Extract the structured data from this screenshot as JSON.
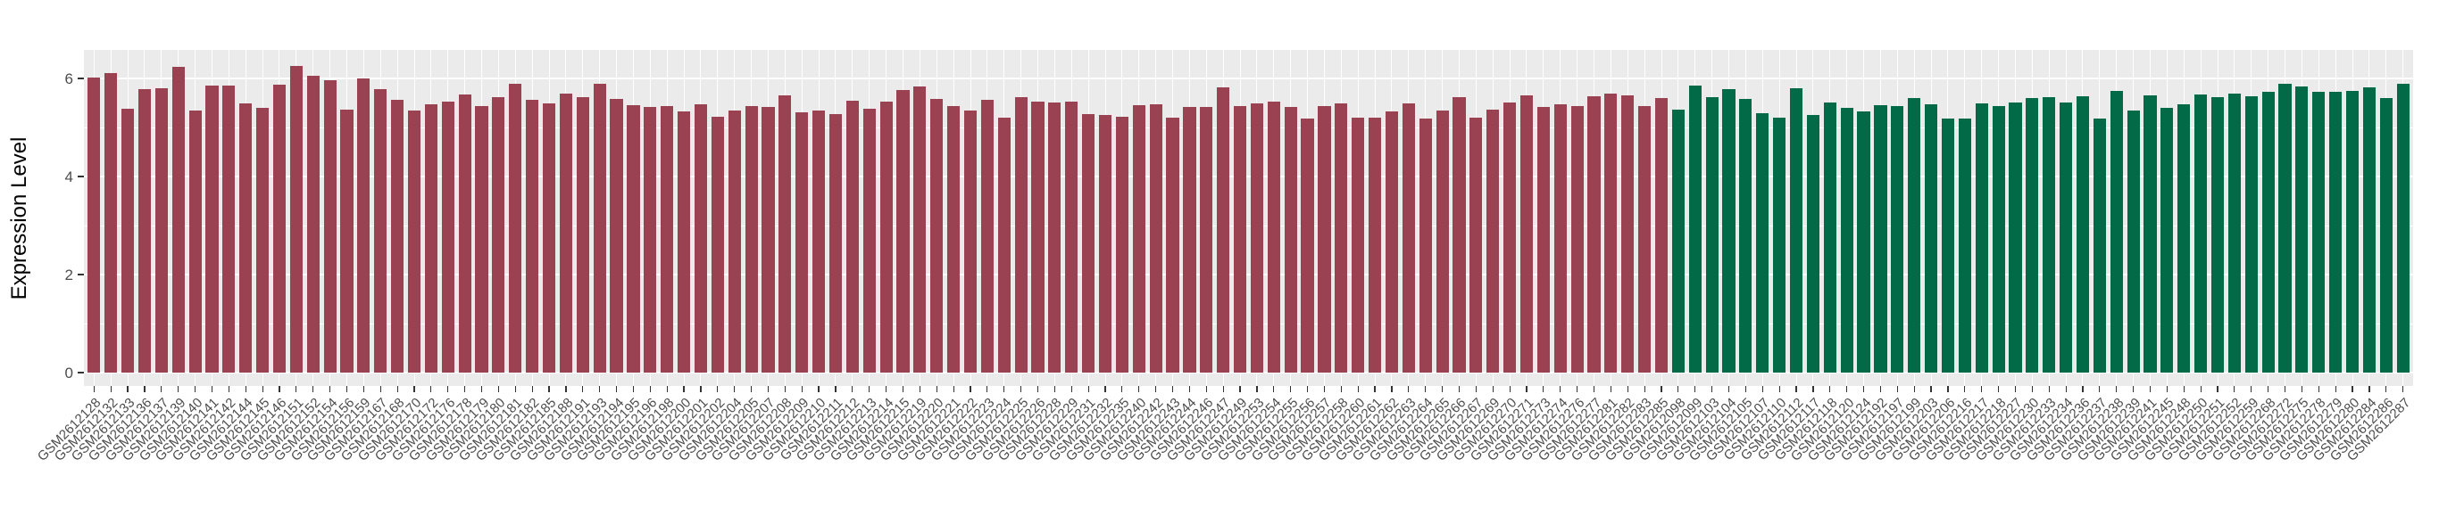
{
  "chart_data": {
    "type": "bar",
    "title": "",
    "xlabel": "",
    "ylabel": "Expression Level",
    "ylim": [
      0,
      6.58
    ],
    "yticks": [
      0,
      2,
      4,
      6
    ],
    "grid": "white major and minor horizontal lines, white vertical line at each category, on gray panel",
    "legend": "none",
    "style": {
      "panel_bg": "#EBEBEB",
      "grid_color": "#FFFFFF",
      "tick_mark_color": "#333333",
      "tick_label_color": "#4D4D4D",
      "axis_title_color": "#000000",
      "page_bg": "#FFFFFF"
    },
    "groups": [
      {
        "name": "group-red",
        "color": "#9A4152",
        "count": 94
      },
      {
        "name": "group-green",
        "color": "#036A48",
        "count": 44
      }
    ],
    "categories": [
      "GSM2612128",
      "GSM2612132",
      "GSM2612133",
      "GSM2612136",
      "GSM2612137",
      "GSM2612139",
      "GSM2612140",
      "GSM2612141",
      "GSM2612142",
      "GSM2612144",
      "GSM2612145",
      "GSM2612146",
      "GSM2612151",
      "GSM2612152",
      "GSM2612154",
      "GSM2612156",
      "GSM2612159",
      "GSM2612167",
      "GSM2612168",
      "GSM2612170",
      "GSM2612172",
      "GSM2612176",
      "GSM2612178",
      "GSM2612179",
      "GSM2612180",
      "GSM2612181",
      "GSM2612182",
      "GSM2612185",
      "GSM2612188",
      "GSM2612191",
      "GSM2612193",
      "GSM2612194",
      "GSM2612195",
      "GSM2612196",
      "GSM2612198",
      "GSM2612200",
      "GSM2612201",
      "GSM2612202",
      "GSM2612204",
      "GSM2612205",
      "GSM2612207",
      "GSM2612208",
      "GSM2612209",
      "GSM2612210",
      "GSM2612211",
      "GSM2612212",
      "GSM2612213",
      "GSM2612214",
      "GSM2612215",
      "GSM2612219",
      "GSM2612220",
      "GSM2612221",
      "GSM2612222",
      "GSM2612223",
      "GSM2612224",
      "GSM2612225",
      "GSM2612226",
      "GSM2612228",
      "GSM2612229",
      "GSM2612231",
      "GSM2612232",
      "GSM2612235",
      "GSM2612240",
      "GSM2612242",
      "GSM2612243",
      "GSM2612244",
      "GSM2612246",
      "GSM2612247",
      "GSM2612249",
      "GSM2612253",
      "GSM2612254",
      "GSM2612255",
      "GSM2612256",
      "GSM2612257",
      "GSM2612258",
      "GSM2612260",
      "GSM2612261",
      "GSM2612262",
      "GSM2612263",
      "GSM2612264",
      "GSM2612265",
      "GSM2612266",
      "GSM2612267",
      "GSM2612269",
      "GSM2612270",
      "GSM2612271",
      "GSM2612273",
      "GSM2612274",
      "GSM2612276",
      "GSM2612277",
      "GSM2612281",
      "GSM2612282",
      "GSM2612283",
      "GSM2612285",
      "GSM2612098",
      "GSM2612099",
      "GSM2612103",
      "GSM2612104",
      "GSM2612105",
      "GSM2612107",
      "GSM2612110",
      "GSM2612112",
      "GSM2612117",
      "GSM2612118",
      "GSM2612120",
      "GSM2612124",
      "GSM2612192",
      "GSM2612197",
      "GSM2612199",
      "GSM2612203",
      "GSM2612206",
      "GSM2612216",
      "GSM2612217",
      "GSM2612218",
      "GSM2612227",
      "GSM2612230",
      "GSM2612233",
      "GSM2612234",
      "GSM2612236",
      "GSM2612237",
      "GSM2612238",
      "GSM2612239",
      "GSM2612241",
      "GSM2612245",
      "GSM2612248",
      "GSM2612250",
      "GSM2612251",
      "GSM2612252",
      "GSM2612259",
      "GSM2612268",
      "GSM2612272",
      "GSM2612275",
      "GSM2612278",
      "GSM2612279",
      "GSM2612280",
      "GSM2612284",
      "GSM2612286",
      "GSM2612287"
    ],
    "values": [
      6.01,
      6.11,
      5.39,
      5.79,
      5.8,
      6.24,
      5.34,
      5.85,
      5.85,
      5.49,
      5.4,
      5.88,
      6.26,
      6.06,
      5.96,
      5.37,
      6.0,
      5.78,
      5.56,
      5.35,
      5.47,
      5.53,
      5.67,
      5.43,
      5.62,
      5.89,
      5.57,
      5.5,
      5.69,
      5.61,
      5.89,
      5.59,
      5.45,
      5.42,
      5.44,
      5.33,
      5.48,
      5.22,
      5.35,
      5.44,
      5.42,
      5.65,
      5.31,
      5.34,
      5.28,
      5.55,
      5.38,
      5.52,
      5.77,
      5.84,
      5.59,
      5.43,
      5.35,
      5.57,
      5.2,
      5.61,
      5.52,
      5.51,
      5.52,
      5.28,
      5.26,
      5.22,
      5.45,
      5.47,
      5.2,
      5.41,
      5.41,
      5.81,
      5.44,
      5.49,
      5.52,
      5.41,
      5.18,
      5.44,
      5.49,
      5.2,
      5.2,
      5.33,
      5.49,
      5.18,
      5.34,
      5.62,
      5.2,
      5.37,
      5.51,
      5.66,
      5.42,
      5.47,
      5.43,
      5.64,
      5.69,
      5.65,
      5.43,
      5.6,
      5.36,
      5.85,
      5.62,
      5.79,
      5.58,
      5.29,
      5.2,
      5.8,
      5.26,
      5.51,
      5.4,
      5.33,
      5.45,
      5.44,
      5.6,
      5.47,
      5.18,
      5.18,
      5.49,
      5.44,
      5.51,
      5.6,
      5.61,
      5.51,
      5.64,
      5.18,
      5.75,
      5.35,
      5.66,
      5.4,
      5.48,
      5.68,
      5.61,
      5.7,
      5.64,
      5.73,
      5.9,
      5.83,
      5.72,
      5.73,
      5.75,
      5.81,
      5.6,
      5.89
    ]
  }
}
